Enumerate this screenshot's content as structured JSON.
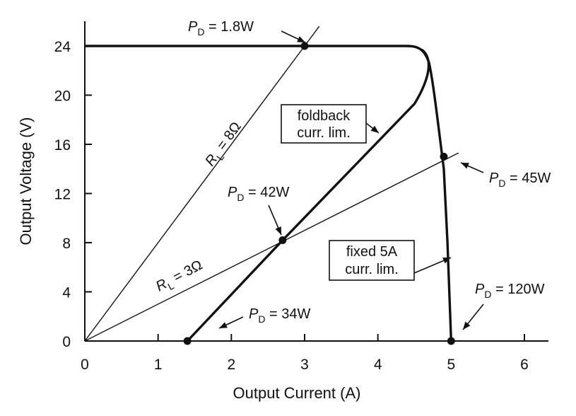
{
  "chart_data": {
    "type": "line",
    "title": "",
    "xlabel": "Output Current (A)",
    "ylabel": "Output Voltage (V)",
    "xlim": [
      0,
      6
    ],
    "ylim": [
      0,
      24
    ],
    "xticks": [
      "0",
      "1",
      "2",
      "3",
      "4",
      "5",
      "6"
    ],
    "yticks": [
      "0",
      "4",
      "8",
      "12",
      "16",
      "20",
      "24"
    ],
    "grid": false,
    "series": [
      {
        "role": "fixed-limit-curve",
        "x": [
          0,
          4.4,
          4.6,
          4.7,
          4.78,
          4.85,
          4.9,
          4.95,
          5.0
        ],
        "y": [
          24,
          24,
          23.6,
          22.6,
          20.0,
          16.5,
          14.0,
          8.0,
          0
        ]
      },
      {
        "role": "foldback-curve",
        "x": [
          1.4,
          2.7,
          4.5,
          4.65,
          4.72,
          4.6
        ],
        "y": [
          0,
          8.2,
          19.3,
          21.0,
          22.5,
          23.7
        ]
      },
      {
        "role": "load-line-8ohm",
        "x": [
          0,
          3.0,
          3.2
        ],
        "y": [
          0,
          24,
          25.6
        ]
      },
      {
        "role": "load-line-3ohm",
        "x": [
          0,
          5.0,
          5.1
        ],
        "y": [
          0,
          15,
          15.3
        ]
      }
    ],
    "points": [
      {
        "x": 3.0,
        "y": 24
      },
      {
        "x": 4.9,
        "y": 15
      },
      {
        "x": 2.7,
        "y": 8.2
      },
      {
        "x": 1.4,
        "y": 0
      },
      {
        "x": 5.0,
        "y": 0
      }
    ],
    "annotations": {
      "pd_1_8": {
        "sym": "P",
        "sub": "D",
        "rest": " = 1.8W"
      },
      "pd_45": {
        "sym": "P",
        "sub": "D",
        "rest": " = 45W"
      },
      "pd_42": {
        "sym": "P",
        "sub": "D",
        "rest": " = 42W"
      },
      "pd_34": {
        "sym": "P",
        "sub": "D",
        "rest": " = 34W"
      },
      "pd_120": {
        "sym": "P",
        "sub": "D",
        "rest": " = 120W"
      },
      "rl_8": {
        "sym": "R",
        "sub": "L",
        "rest": " = 8Ω"
      },
      "rl_3": {
        "sym": "R",
        "sub": "L",
        "rest": " = 3Ω"
      },
      "foldback_box": [
        "foldback",
        "curr. lim."
      ],
      "fixed_box": [
        "fixed 5A",
        "curr. lim."
      ]
    }
  }
}
